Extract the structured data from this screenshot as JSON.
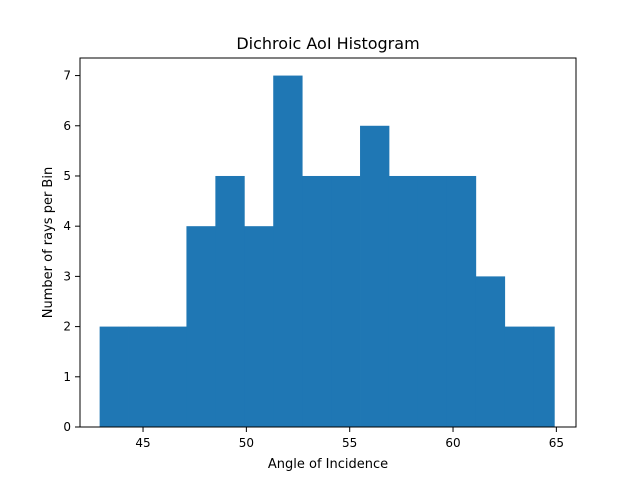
{
  "chart_data": {
    "type": "bar",
    "title": "Dichroic AoI Histogram",
    "xlabel": "Angle of Incidence",
    "ylabel": "Number of rays per Bin",
    "bin_edges": [
      42.9,
      44.3,
      45.7,
      47.1,
      48.5,
      49.9,
      51.3,
      52.7,
      54.1,
      55.5,
      56.9,
      58.3,
      59.7,
      61.1,
      62.5,
      63.9,
      64.9
    ],
    "values": [
      2,
      2,
      2,
      4,
      5,
      4,
      7,
      5,
      5,
      6,
      5,
      5,
      5,
      3,
      2,
      2
    ],
    "xlim": [
      41.95,
      65.95
    ],
    "ylim": [
      0,
      7.35
    ],
    "xticks": [
      45,
      50,
      55,
      60,
      65
    ],
    "yticks": [
      0,
      1,
      2,
      3,
      4,
      5,
      6,
      7
    ],
    "grid": false,
    "bar_color": "#1f77b4"
  }
}
